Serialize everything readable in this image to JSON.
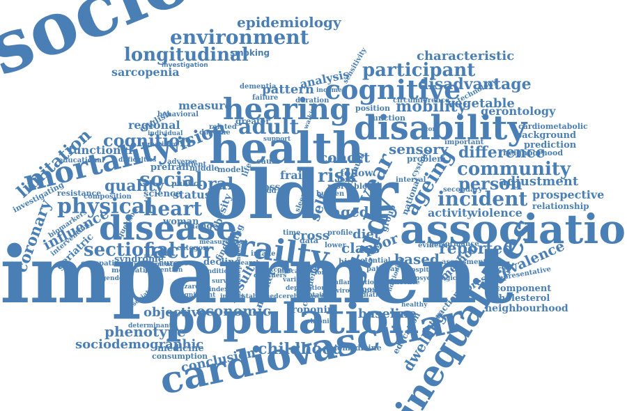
{
  "palette": {
    "word_color": "#4a7fb5",
    "background": "#ffffff"
  },
  "words": [
    {
      "text": "socioeconomic",
      "weight": 100
    },
    {
      "text": "impairment",
      "weight": 100
    },
    {
      "text": "older",
      "weight": 95
    },
    {
      "text": "health",
      "weight": 85
    },
    {
      "text": "population",
      "weight": 80
    },
    {
      "text": "association",
      "weight": 80
    },
    {
      "text": "cardiovascular",
      "weight": 75
    },
    {
      "text": "disability",
      "weight": 70
    },
    {
      "text": "inequalities",
      "weight": 70
    },
    {
      "text": "mortality",
      "weight": 65
    },
    {
      "text": "hearing",
      "weight": 60
    },
    {
      "text": "frailty",
      "weight": 60
    },
    {
      "text": "study",
      "weight": 60
    },
    {
      "text": "disease",
      "weight": 58
    },
    {
      "text": "cognitive",
      "weight": 55
    },
    {
      "text": "environment",
      "weight": 40
    },
    {
      "text": "longitudinal",
      "weight": 38
    },
    {
      "text": "participant",
      "weight": 38
    },
    {
      "text": "epidemiology",
      "weight": 30
    },
    {
      "text": "smoking",
      "weight": 18
    },
    {
      "text": "investigation",
      "weight": 12
    },
    {
      "text": "sarcopenia",
      "weight": 18
    },
    {
      "text": "characteristic",
      "weight": 22
    },
    {
      "text": "disadvantage",
      "weight": 30
    },
    {
      "text": "analysis",
      "weight": 20
    },
    {
      "text": "pattern",
      "weight": 22
    },
    {
      "text": "measure",
      "weight": 20
    },
    {
      "text": "english",
      "weight": 14
    },
    {
      "text": "regional",
      "weight": 20
    },
    {
      "text": "vision",
      "weight": 30
    },
    {
      "text": "adult",
      "weight": 35
    },
    {
      "text": "mobility",
      "weight": 30
    },
    {
      "text": "vegetable",
      "weight": 22
    },
    {
      "text": "gerontology",
      "weight": 20
    },
    {
      "text": "cognition",
      "weight": 30
    },
    {
      "text": "limitation",
      "weight": 28
    },
    {
      "text": "functional",
      "weight": 20
    },
    {
      "text": "cardiometabolic",
      "weight": 14
    },
    {
      "text": "background",
      "weight": 16
    },
    {
      "text": "prediction",
      "weight": 16
    },
    {
      "text": "neighborhood",
      "weight": 14
    },
    {
      "text": "sensory",
      "weight": 24
    },
    {
      "text": "difference",
      "weight": 26
    },
    {
      "text": "community",
      "weight": 32
    },
    {
      "text": "year",
      "weight": 40
    },
    {
      "text": "ageing",
      "weight": 36
    },
    {
      "text": "person",
      "weight": 32
    },
    {
      "text": "adjustment",
      "weight": 24
    },
    {
      "text": "quality",
      "weight": 26
    },
    {
      "text": "social",
      "weight": 34
    },
    {
      "text": "oral",
      "weight": 32
    },
    {
      "text": "risk",
      "weight": 32
    },
    {
      "text": "incident",
      "weight": 36
    },
    {
      "text": "prospective",
      "weight": 20
    },
    {
      "text": "relationship",
      "weight": 16
    },
    {
      "text": "physical",
      "weight": 34
    },
    {
      "text": "heart",
      "weight": 34
    },
    {
      "text": "status",
      "weight": 22
    },
    {
      "text": "science",
      "weight": 16
    },
    {
      "text": "activity",
      "weight": 20
    },
    {
      "text": "violence",
      "weight": 20
    },
    {
      "text": "coronary",
      "weight": 28
    },
    {
      "text": "influence",
      "weight": 24
    },
    {
      "text": "obesity",
      "weight": 18
    },
    {
      "text": "aged",
      "weight": 26
    },
    {
      "text": "self",
      "weight": 24
    },
    {
      "text": "diet",
      "weight": 22
    },
    {
      "text": "cohort",
      "weight": 26
    },
    {
      "text": "geriatric",
      "weight": 18
    },
    {
      "text": "sectional",
      "weight": 32
    },
    {
      "text": "factor",
      "weight": 36
    },
    {
      "text": "cross",
      "weight": 22
    },
    {
      "text": "class",
      "weight": 24
    },
    {
      "text": "poor",
      "weight": 24
    },
    {
      "text": "based",
      "weight": 24
    },
    {
      "text": "reported",
      "weight": 26
    },
    {
      "text": "prevalence",
      "weight": 26
    },
    {
      "text": "method",
      "weight": 20
    },
    {
      "text": "pressure",
      "weight": 18
    },
    {
      "text": "component",
      "weight": 14
    },
    {
      "text": "cholesterol",
      "weight": 14
    },
    {
      "text": "neighbourhood",
      "weight": 16
    },
    {
      "text": "objective",
      "weight": 20
    },
    {
      "text": "economic",
      "weight": 22
    },
    {
      "text": "troponin",
      "weight": 16
    },
    {
      "text": "baseline",
      "weight": 20
    },
    {
      "text": "phenotype",
      "weight": 22
    },
    {
      "text": "sociodemographic",
      "weight": 20
    },
    {
      "text": "medicine",
      "weight": 16
    },
    {
      "text": "consumption",
      "weight": 14
    },
    {
      "text": "conclusion",
      "weight": 22
    },
    {
      "text": "childhood",
      "weight": 24
    },
    {
      "text": "biomedicine",
      "weight": 12
    },
    {
      "text": "dwelling",
      "weight": 22
    },
    {
      "text": "education",
      "weight": 14
    },
    {
      "text": "interaction",
      "weight": 14
    },
    {
      "text": "determinant",
      "weight": 10
    },
    {
      "text": "syndrome",
      "weight": 14
    },
    {
      "text": "woman",
      "weight": 14
    },
    {
      "text": "european",
      "weight": 12
    },
    {
      "text": "decline",
      "weight": 14
    },
    {
      "text": "result",
      "weight": 18
    },
    {
      "text": "marker",
      "weight": 14
    },
    {
      "text": "confidence",
      "weight": 12
    },
    {
      "text": "adiposity",
      "weight": 12
    },
    {
      "text": "higher",
      "weight": 12
    },
    {
      "text": "evidence",
      "weight": 12
    },
    {
      "text": "public",
      "weight": 12
    },
    {
      "text": "resistance",
      "weight": 12
    },
    {
      "text": "prefrail",
      "weight": 14
    },
    {
      "text": "middle",
      "weight": 12
    },
    {
      "text": "model",
      "weight": 12
    },
    {
      "text": "frail",
      "weight": 16
    },
    {
      "text": "follow",
      "weight": 14
    },
    {
      "text": "more",
      "weight": 12
    },
    {
      "text": "blood",
      "weight": 12
    },
    {
      "text": "loss",
      "weight": 14
    },
    {
      "text": "cause",
      "weight": 12
    },
    {
      "text": "data",
      "weight": 12
    },
    {
      "text": "function",
      "weight": 12
    },
    {
      "text": "position",
      "weight": 12
    },
    {
      "text": "greater",
      "weight": 12
    },
    {
      "text": "related",
      "weight": 10
    },
    {
      "text": "daytime",
      "weight": 10
    },
    {
      "text": "patient",
      "weight": 10
    },
    {
      "text": "important",
      "weight": 10
    },
    {
      "text": "educational",
      "weight": 10
    },
    {
      "text": "investigating",
      "weight": 12
    },
    {
      "text": "biomarkers",
      "weight": 10
    },
    {
      "text": "intervention",
      "weight": 10
    },
    {
      "text": "occupation",
      "weight": 10
    },
    {
      "text": "sleep",
      "weight": 10
    },
    {
      "text": "manual",
      "weight": 12
    },
    {
      "text": "problem",
      "weight": 12
    },
    {
      "text": "lower",
      "weight": 10
    },
    {
      "text": "intake",
      "weight": 10
    },
    {
      "text": "finding",
      "weight": 12
    },
    {
      "text": "change",
      "weight": 12
    },
    {
      "text": "category",
      "weight": 10
    },
    {
      "text": "composition",
      "weight": 10
    },
    {
      "text": "medication",
      "weight": 10
    },
    {
      "text": "adverse",
      "weight": 10
    },
    {
      "text": "question",
      "weight": 10
    },
    {
      "text": "secondary",
      "weight": 10
    },
    {
      "text": "technology",
      "weight": 10
    },
    {
      "text": "circumference",
      "weight": 10
    },
    {
      "text": "failure",
      "weight": 10
    },
    {
      "text": "sensitivity",
      "weight": 10
    },
    {
      "text": "dementia",
      "weight": 10
    },
    {
      "text": "behavioral",
      "weight": 10
    },
    {
      "text": "duration",
      "weight": 10
    },
    {
      "text": "interval",
      "weight": 10
    },
    {
      "text": "cystatin",
      "weight": 10
    },
    {
      "text": "town",
      "weight": 10
    },
    {
      "text": "group",
      "weight": 12
    },
    {
      "text": "national",
      "weight": 12
    },
    {
      "text": "performance",
      "weight": 10
    },
    {
      "text": "assessment",
      "weight": 10
    },
    {
      "text": "representative",
      "weight": 10
    },
    {
      "text": "potential",
      "weight": 10
    },
    {
      "text": "pathway",
      "weight": 10
    },
    {
      "text": "sample",
      "weight": 10
    },
    {
      "text": "profile",
      "weight": 10
    },
    {
      "text": "odd",
      "weight": 10
    },
    {
      "text": "life",
      "weight": 12
    },
    {
      "text": "style",
      "weight": 10
    },
    {
      "text": "burden",
      "weight": 10
    },
    {
      "text": "time",
      "weight": 10
    },
    {
      "text": "aging",
      "weight": 12
    },
    {
      "text": "individual",
      "weight": 10
    },
    {
      "text": "creatinine",
      "weight": 10
    },
    {
      "text": "difficulties",
      "weight": 10
    },
    {
      "text": "prevention",
      "weight": 10
    },
    {
      "text": "associated",
      "weight": 10
    },
    {
      "text": "chronic",
      "weight": 10
    },
    {
      "text": "research",
      "weight": 10
    },
    {
      "text": "independent",
      "weight": 10
    },
    {
      "text": "disorders",
      "weight": 10
    },
    {
      "text": "outcome",
      "weight": 10
    },
    {
      "text": "longer",
      "weight": 10
    },
    {
      "text": "indicator",
      "weight": 10
    },
    {
      "text": "variable",
      "weight": 10
    },
    {
      "text": "mediation",
      "weight": 10
    },
    {
      "text": "instrumental",
      "weight": 10
    },
    {
      "text": "condition",
      "weight": 10
    },
    {
      "text": "measurement",
      "weight": 10
    },
    {
      "text": "score",
      "weight": 10
    },
    {
      "text": "walking",
      "weight": 10
    },
    {
      "text": "income",
      "weight": 10
    },
    {
      "text": "established",
      "weight": 10
    },
    {
      "text": "deprivation",
      "weight": 10
    },
    {
      "text": "cerebrovascular",
      "weight": 10
    },
    {
      "text": "conditioning",
      "weight": 10
    },
    {
      "text": "occurrence",
      "weight": 10
    },
    {
      "text": "inflammation",
      "weight": 10
    },
    {
      "text": "environmental",
      "weight": 10
    },
    {
      "text": "survey",
      "weight": 10
    },
    {
      "text": "index",
      "weight": 10
    },
    {
      "text": "impact",
      "weight": 10
    },
    {
      "text": "obtained",
      "weight": 10
    },
    {
      "text": "hospital",
      "weight": 10
    },
    {
      "text": "psychological",
      "weight": 10
    },
    {
      "text": "gender",
      "weight": 10
    },
    {
      "text": "support",
      "weight": 10
    },
    {
      "text": "hazard",
      "weight": 10
    },
    {
      "text": "significant",
      "weight": 10
    },
    {
      "text": "healthy",
      "weight": 10
    },
    {
      "text": "decade",
      "weight": 10
    },
    {
      "text": "covariates",
      "weight": 10
    },
    {
      "text": "hypertension",
      "weight": 10
    },
    {
      "text": "mental",
      "weight": 10
    },
    {
      "text": "weight",
      "weight": 10
    },
    {
      "text": "adolescent",
      "weight": 10
    }
  ]
}
